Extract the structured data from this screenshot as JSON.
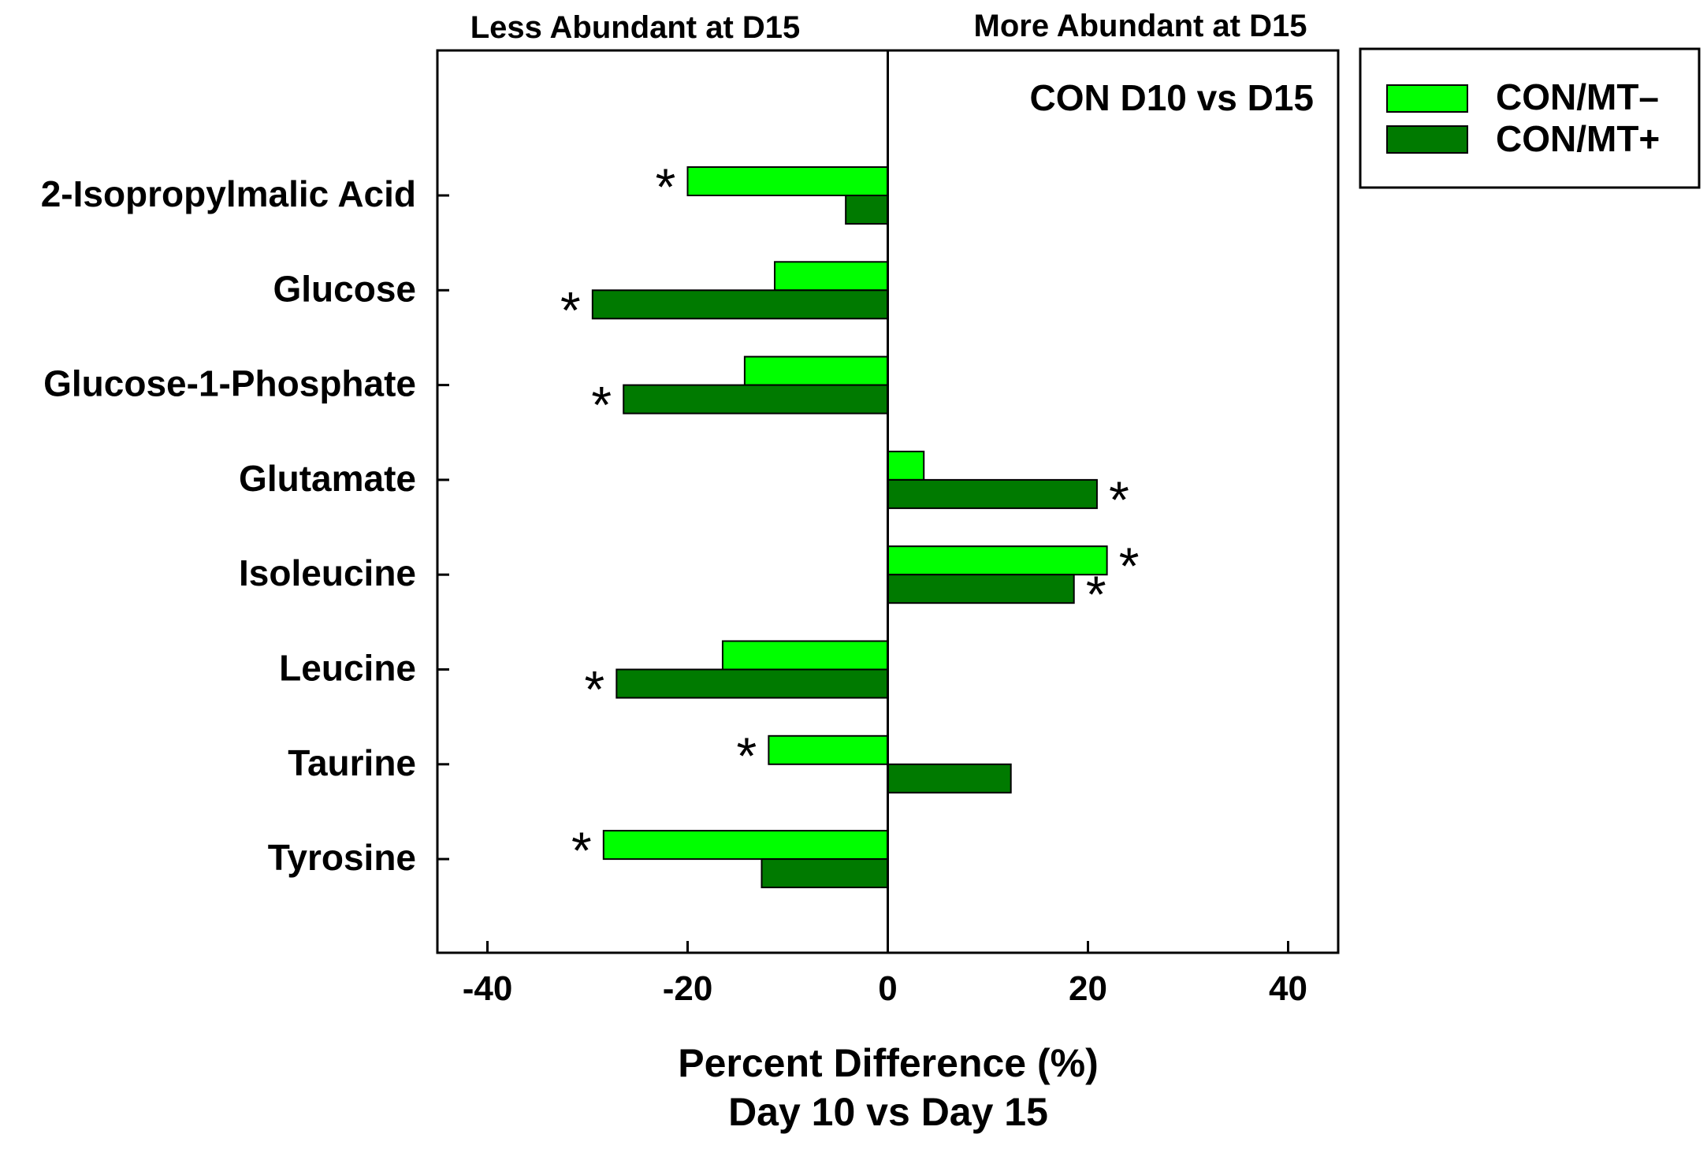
{
  "chart_data": {
    "type": "bar",
    "orientation": "horizontal",
    "title": "CON D10 vs D15",
    "header_left": "Less Abundant at D15",
    "header_right": "More Abundant at D15",
    "xlabel_line1": "Percent Difference (%)",
    "xlabel_line2": "Day 10 vs Day 15",
    "xlim": [
      -45,
      45
    ],
    "xticks": [
      -40,
      -20,
      0,
      20,
      40
    ],
    "xtick_labels": [
      "-40",
      "-20",
      "0",
      "20",
      "40"
    ],
    "significance_marker": "*",
    "categories": [
      "2-Isopropylmalic Acid",
      "Glucose",
      "Glucose-1-Phosphate",
      "Glutamate",
      "Isoleucine",
      "Leucine",
      "Taurine",
      "Tyrosine"
    ],
    "series": [
      {
        "name": "CON/MT–",
        "color": "#00ff00",
        "values": [
          -20,
          -11.3,
          -14.3,
          3.6,
          21.9,
          -16.5,
          -11.9,
          -28.4
        ],
        "significant": [
          true,
          false,
          false,
          false,
          true,
          false,
          true,
          true
        ]
      },
      {
        "name": "CON/MT+",
        "color": "#007a00",
        "values": [
          -4.2,
          -29.5,
          -26.4,
          20.9,
          18.6,
          -27.1,
          12.3,
          -12.6
        ],
        "significant": [
          false,
          true,
          true,
          true,
          true,
          true,
          false,
          false
        ]
      }
    ],
    "legend": {
      "location": "upper-right-outside"
    }
  }
}
